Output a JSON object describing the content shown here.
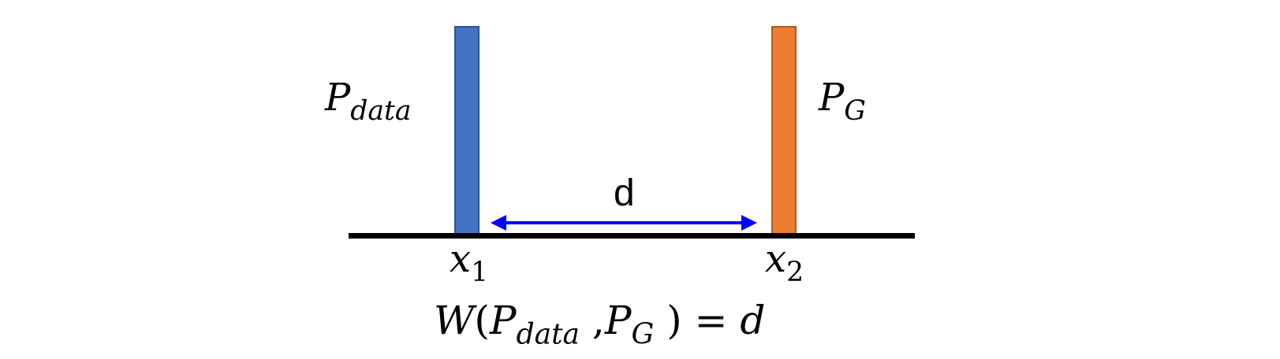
{
  "diagram": {
    "distribution_data": {
      "symbol": "P",
      "subscript": "data",
      "color": "#4472c4"
    },
    "distribution_gen": {
      "symbol": "P",
      "subscript": "G",
      "color": "#ed7d31"
    },
    "point_1": {
      "symbol": "x",
      "subscript": "1"
    },
    "point_2": {
      "symbol": "x",
      "subscript": "2"
    },
    "distance_label": "d",
    "arrow_color": "#0000ff",
    "formula": {
      "func": "W",
      "open_paren": "(",
      "arg1_symbol": "P",
      "arg1_subscript": "data",
      "comma": ",",
      "arg2_symbol": "P",
      "arg2_subscript": "G",
      "close_paren": ")",
      "equals": "=",
      "result": "d"
    }
  }
}
